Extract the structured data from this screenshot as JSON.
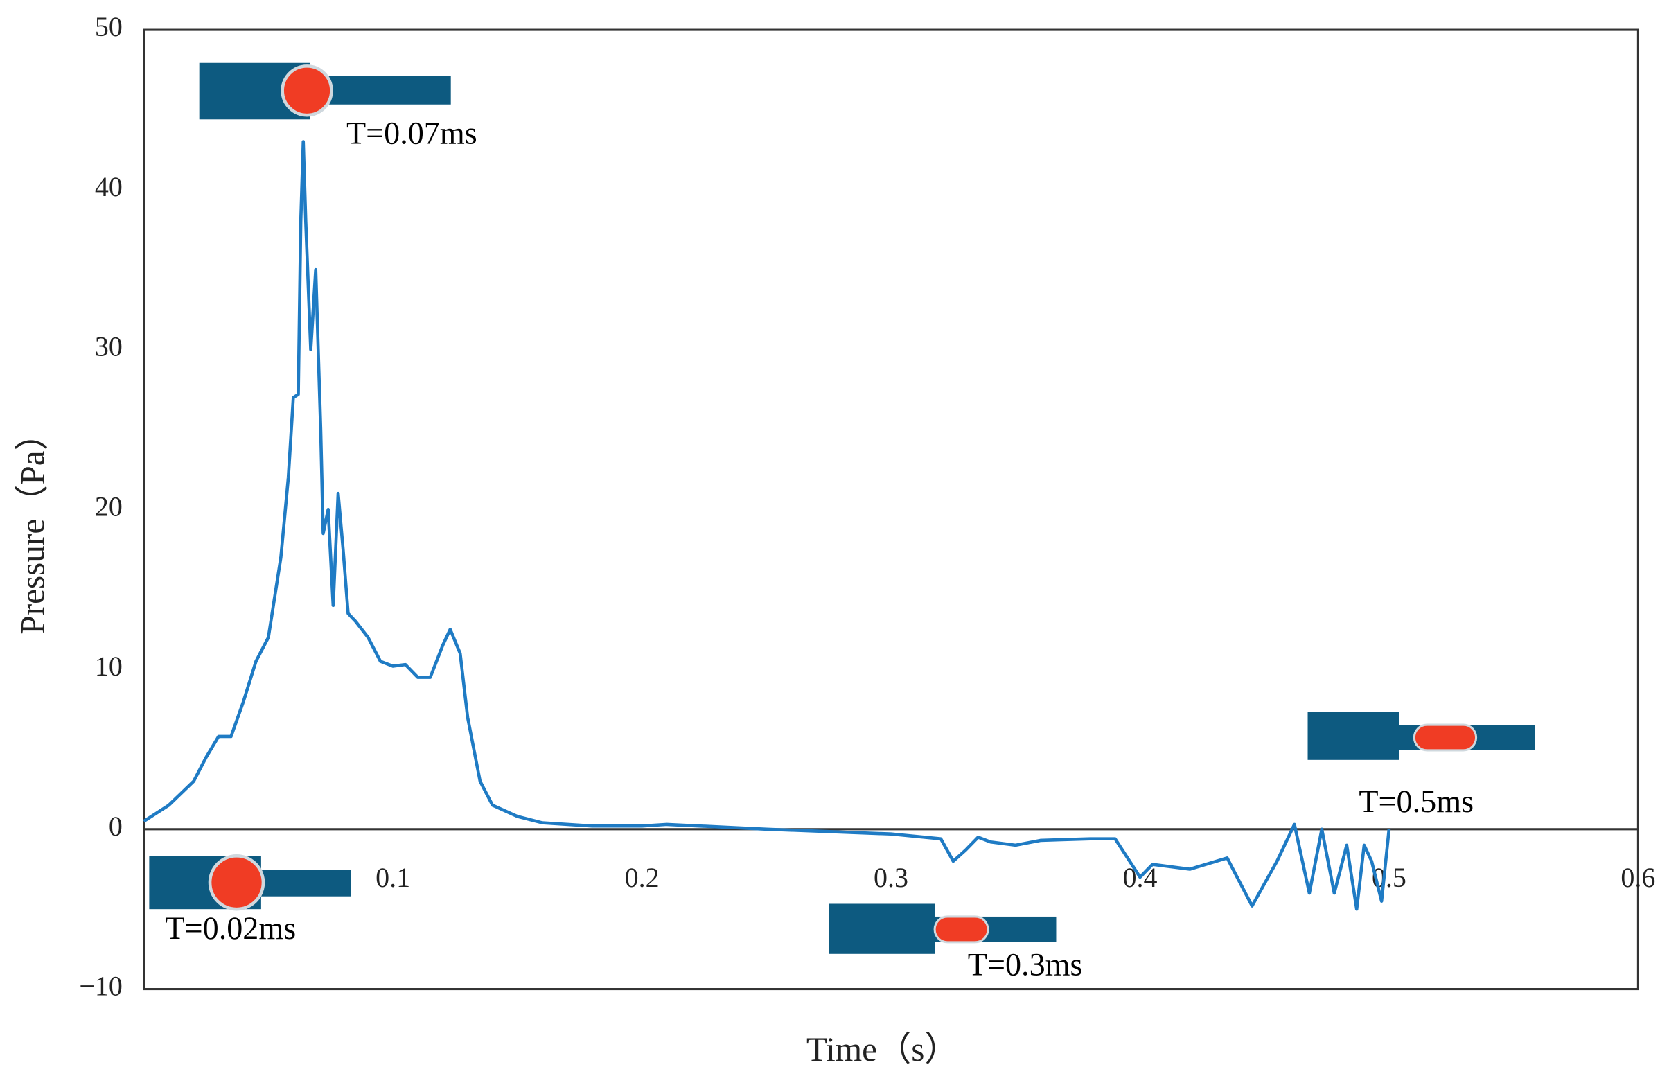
{
  "chart_data": {
    "type": "line",
    "x_label": "Time（s）",
    "y_label": "Pressure（Pa）",
    "annotations": [
      "T=0.07ms",
      "T=0.02ms",
      "T=0.3ms",
      "T=0.5ms"
    ],
    "xlim": [
      0,
      0.6
    ],
    "xticks": [
      0.1,
      0.2,
      0.3,
      0.4,
      0.5,
      0.6
    ],
    "ylim": [
      -10,
      50
    ],
    "yticks": [
      {
        "value": -10,
        "label": "−10"
      },
      0,
      10,
      20,
      30,
      40,
      50
    ],
    "grid": false,
    "series": [
      {
        "color": "#1f7bc4",
        "x": [
          0,
          0.01,
          0.02,
          0.025,
          0.03,
          0.035,
          0.04,
          0.045,
          0.05,
          0.055,
          0.058,
          0.06,
          0.062,
          0.063,
          0.064,
          0.065,
          0.067,
          0.069,
          0.071,
          0.072,
          0.074,
          0.076,
          0.078,
          0.08,
          0.082,
          0.085,
          0.09,
          0.095,
          0.1,
          0.105,
          0.11,
          0.115,
          0.12,
          0.123,
          0.127,
          0.13,
          0.135,
          0.14,
          0.15,
          0.16,
          0.18,
          0.2,
          0.21,
          0.25,
          0.3,
          0.32,
          0.325,
          0.33,
          0.335,
          0.34,
          0.35,
          0.36,
          0.38,
          0.39,
          0.4,
          0.405,
          0.42,
          0.435,
          0.445,
          0.455,
          0.462,
          0.468,
          0.473,
          0.478,
          0.483,
          0.487,
          0.49,
          0.493,
          0.497,
          0.5
        ],
        "values": [
          0.5,
          1.5,
          3,
          4.5,
          5.8,
          5.8,
          8,
          10.5,
          12,
          17,
          22,
          27,
          27.2,
          38,
          43,
          38,
          30,
          35,
          25,
          18.5,
          20,
          14,
          21,
          17.5,
          13.5,
          13,
          12,
          10.5,
          10.2,
          10.3,
          9.5,
          9.5,
          11.5,
          12.5,
          11,
          7,
          3,
          1.5,
          0.8,
          0.4,
          0.2,
          0.2,
          0.3,
          0,
          -0.3,
          -0.6,
          -2,
          -1.3,
          -0.5,
          -0.8,
          -1,
          -0.7,
          -0.6,
          -0.6,
          -3,
          -2.2,
          -2.5,
          -1.8,
          -4.8,
          -2,
          0.3,
          -4,
          0,
          -4,
          -1,
          -5,
          -1,
          -2,
          -4.5,
          0
        ]
      }
    ]
  }
}
